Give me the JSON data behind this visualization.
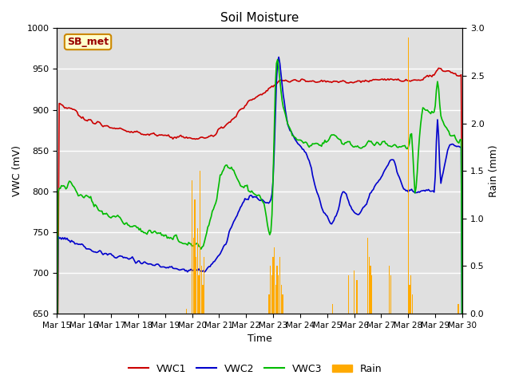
{
  "title": "Soil Moisture",
  "xlabel": "Time",
  "ylabel_left": "VWC (mV)",
  "ylabel_right": "Rain (mm)",
  "ylim_left": [
    650,
    1000
  ],
  "ylim_right": [
    0.0,
    3.0
  ],
  "yticks_left": [
    650,
    700,
    750,
    800,
    850,
    900,
    950,
    1000
  ],
  "yticks_right": [
    0.0,
    0.5,
    1.0,
    1.5,
    2.0,
    2.5,
    3.0
  ],
  "xtick_labels": [
    "Mar 15",
    "Mar 16",
    "Mar 17",
    "Mar 18",
    "Mar 19",
    "Mar 20",
    "Mar 21",
    "Mar 22",
    "Mar 23",
    "Mar 24",
    "Mar 25",
    "Mar 26",
    "Mar 27",
    "Mar 28",
    "Mar 29",
    "Mar 30"
  ],
  "colors": {
    "VWC1": "#cc0000",
    "VWC2": "#0000cc",
    "VWC3": "#00bb00",
    "Rain": "#ffaa00"
  },
  "station_label": "SB_met",
  "station_label_color": "#990000",
  "station_box_fill": "#ffffcc",
  "station_box_edge": "#cc8800",
  "background_color": "#e0e0e0",
  "grid_color": "#ffffff",
  "fig_background": "#ffffff"
}
